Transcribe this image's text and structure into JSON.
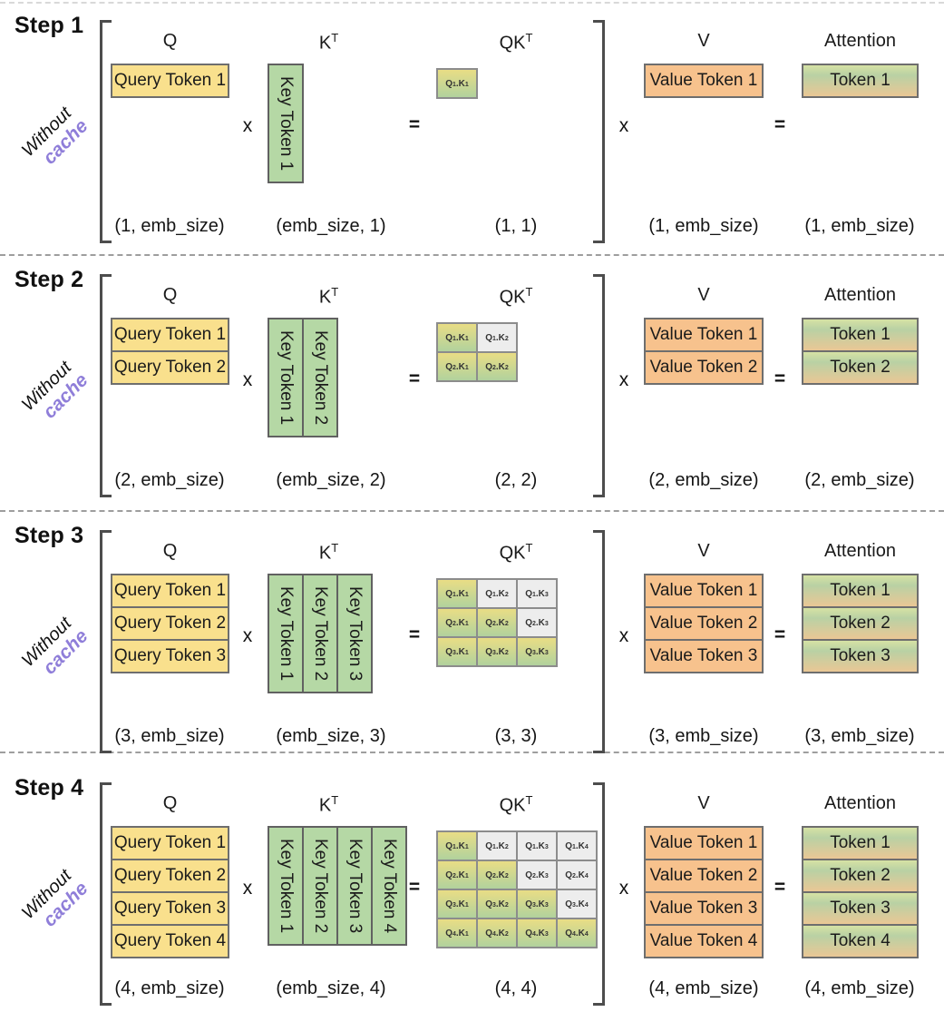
{
  "figure": {
    "side_label": {
      "word1": "Without",
      "word2": "cache"
    },
    "columns": {
      "q": {
        "header": "Q"
      },
      "k": {
        "header_base": "K",
        "header_sup": "T"
      },
      "qk": {
        "header_base": "QK",
        "header_sup": "T"
      },
      "v": {
        "header": "V"
      },
      "attention": {
        "header": "Attention"
      }
    },
    "operators": {
      "multiply": "x",
      "equals": "="
    },
    "qk_separator": ".",
    "colors": {
      "query_fill": "#F9E08D",
      "key_fill": "#B5D8A5",
      "value_fill": "#F7C28D",
      "qk_gradient_top": "#E9DD85",
      "qk_gradient_bottom": "#B1D29D",
      "masked_fill": "#EDEDED",
      "attention_gradient_top": "#D6E2A4",
      "attention_gradient_mid": "#B9D1A4",
      "attention_gradient_bottom": "#EAC795",
      "cache_purple": "#8F7ED9"
    },
    "steps": [
      {
        "label": "Step 1",
        "query_tokens": [
          "Query Token 1"
        ],
        "key_tokens": [
          "Key Token 1"
        ],
        "value_tokens": [
          "Value Token 1"
        ],
        "attention_tokens": [
          "Token 1"
        ],
        "qk_cells": [
          [
            {
              "q": "Q",
              "q_sub": "1",
              "k": "K",
              "k_sub": "1",
              "masked": false
            }
          ]
        ],
        "shapes": {
          "q": "(1, emb_size)",
          "kt": "(emb_size, 1)",
          "qk": "(1, 1)",
          "v": "(1, emb_size)",
          "attention": "(1, emb_size)"
        }
      },
      {
        "label": "Step 2",
        "query_tokens": [
          "Query Token 1",
          "Query Token 2"
        ],
        "key_tokens": [
          "Key Token 1",
          "Key Token 2"
        ],
        "value_tokens": [
          "Value Token 1",
          "Value Token 2"
        ],
        "attention_tokens": [
          "Token 1",
          "Token 2"
        ],
        "qk_cells": [
          [
            {
              "q": "Q",
              "q_sub": "1",
              "k": "K",
              "k_sub": "1",
              "masked": false
            },
            {
              "q": "Q",
              "q_sub": "1",
              "k": "K",
              "k_sub": "2",
              "masked": true
            }
          ],
          [
            {
              "q": "Q",
              "q_sub": "2",
              "k": "K",
              "k_sub": "1",
              "masked": false
            },
            {
              "q": "Q",
              "q_sub": "2",
              "k": "K",
              "k_sub": "2",
              "masked": false
            }
          ]
        ],
        "shapes": {
          "q": "(2, emb_size)",
          "kt": "(emb_size, 2)",
          "qk": "(2, 2)",
          "v": "(2, emb_size)",
          "attention": "(2, emb_size)"
        }
      },
      {
        "label": "Step 3",
        "query_tokens": [
          "Query Token 1",
          "Query Token 2",
          "Query Token 3"
        ],
        "key_tokens": [
          "Key Token 1",
          "Key Token 2",
          "Key Token 3"
        ],
        "value_tokens": [
          "Value Token 1",
          "Value Token 2",
          "Value Token 3"
        ],
        "attention_tokens": [
          "Token 1",
          "Token 2",
          "Token 3"
        ],
        "qk_cells": [
          [
            {
              "q": "Q",
              "q_sub": "1",
              "k": "K",
              "k_sub": "1",
              "masked": false
            },
            {
              "q": "Q",
              "q_sub": "1",
              "k": "K",
              "k_sub": "2",
              "masked": true
            },
            {
              "q": "Q",
              "q_sub": "1",
              "k": "K",
              "k_sub": "3",
              "masked": true
            }
          ],
          [
            {
              "q": "Q",
              "q_sub": "2",
              "k": "K",
              "k_sub": "1",
              "masked": false
            },
            {
              "q": "Q",
              "q_sub": "2",
              "k": "K",
              "k_sub": "2",
              "masked": false
            },
            {
              "q": "Q",
              "q_sub": "2",
              "k": "K",
              "k_sub": "3",
              "masked": true
            }
          ],
          [
            {
              "q": "Q",
              "q_sub": "3",
              "k": "K",
              "k_sub": "1",
              "masked": false
            },
            {
              "q": "Q",
              "q_sub": "3",
              "k": "K",
              "k_sub": "2",
              "masked": false
            },
            {
              "q": "Q",
              "q_sub": "3",
              "k": "K",
              "k_sub": "3",
              "masked": false
            }
          ]
        ],
        "shapes": {
          "q": "(3, emb_size)",
          "kt": "(emb_size, 3)",
          "qk": "(3, 3)",
          "v": "(3, emb_size)",
          "attention": "(3, emb_size)"
        }
      },
      {
        "label": "Step 4",
        "query_tokens": [
          "Query Token 1",
          "Query Token 2",
          "Query Token 3",
          "Query Token 4"
        ],
        "key_tokens": [
          "Key Token 1",
          "Key Token 2",
          "Key Token 3",
          "Key Token 4"
        ],
        "value_tokens": [
          "Value Token 1",
          "Value Token 2",
          "Value Token 3",
          "Value Token 4"
        ],
        "attention_tokens": [
          "Token 1",
          "Token 2",
          "Token 3",
          "Token 4"
        ],
        "qk_cells": [
          [
            {
              "q": "Q",
              "q_sub": "1",
              "k": "K",
              "k_sub": "1",
              "masked": false
            },
            {
              "q": "Q",
              "q_sub": "1",
              "k": "K",
              "k_sub": "2",
              "masked": true
            },
            {
              "q": "Q",
              "q_sub": "1",
              "k": "K",
              "k_sub": "3",
              "masked": true
            },
            {
              "q": "Q",
              "q_sub": "1",
              "k": "K",
              "k_sub": "4",
              "masked": true
            }
          ],
          [
            {
              "q": "Q",
              "q_sub": "2",
              "k": "K",
              "k_sub": "1",
              "masked": false
            },
            {
              "q": "Q",
              "q_sub": "2",
              "k": "K",
              "k_sub": "2",
              "masked": false
            },
            {
              "q": "Q",
              "q_sub": "2",
              "k": "K",
              "k_sub": "3",
              "masked": true
            },
            {
              "q": "Q",
              "q_sub": "2",
              "k": "K",
              "k_sub": "4",
              "masked": true
            }
          ],
          [
            {
              "q": "Q",
              "q_sub": "3",
              "k": "K",
              "k_sub": "1",
              "masked": false
            },
            {
              "q": "Q",
              "q_sub": "3",
              "k": "K",
              "k_sub": "2",
              "masked": false
            },
            {
              "q": "Q",
              "q_sub": "3",
              "k": "K",
              "k_sub": "3",
              "masked": false
            },
            {
              "q": "Q",
              "q_sub": "3",
              "k": "K",
              "k_sub": "4",
              "masked": true
            }
          ],
          [
            {
              "q": "Q",
              "q_sub": "4",
              "k": "K",
              "k_sub": "1",
              "masked": false
            },
            {
              "q": "Q",
              "q_sub": "4",
              "k": "K",
              "k_sub": "2",
              "masked": false
            },
            {
              "q": "Q",
              "q_sub": "4",
              "k": "K",
              "k_sub": "3",
              "masked": false
            },
            {
              "q": "Q",
              "q_sub": "4",
              "k": "K",
              "k_sub": "4",
              "masked": false
            }
          ]
        ],
        "shapes": {
          "q": "(4, emb_size)",
          "kt": "(emb_size, 4)",
          "qk": "(4, 4)",
          "v": "(4, emb_size)",
          "attention": "(4, emb_size)"
        }
      }
    ]
  }
}
